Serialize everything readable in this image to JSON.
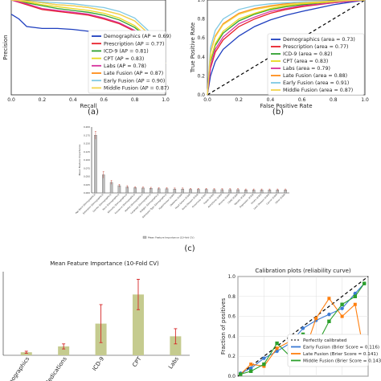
{
  "charts": [
    {
      "id": "a",
      "type": "line",
      "xlabel": "Recall",
      "ylabel": "Precision",
      "panel_label": "(a)",
      "xlim": [
        0,
        1
      ],
      "ylim": [
        0,
        1
      ],
      "x_ticks": [
        "0.0",
        "0.2",
        "0.4",
        "0.6",
        "0.8",
        "1.0"
      ],
      "legend_position": "lower-right",
      "series": [
        {
          "name": "Demographics (AP = 0.69)",
          "color": "#1f3fbf",
          "x": [
            0,
            0.05,
            0.1,
            0.2,
            0.3,
            0.4,
            0.5,
            0.6,
            0.7,
            0.8,
            0.9,
            1.0
          ],
          "y": [
            0.85,
            0.8,
            0.72,
            0.7,
            0.7,
            0.69,
            0.67,
            0.64,
            0.6,
            0.52,
            0.43,
            0.33
          ]
        },
        {
          "name": "Prescription (AP = 0.77)",
          "color": "#e8202a",
          "x": [
            0,
            0.1,
            0.2,
            0.3,
            0.4,
            0.5,
            0.6,
            0.7,
            0.8,
            0.9,
            1.0
          ],
          "y": [
            1.0,
            0.95,
            0.9,
            0.88,
            0.86,
            0.84,
            0.8,
            0.75,
            0.67,
            0.55,
            0.33
          ]
        },
        {
          "name": "ICD-9 (AP = 0.81)",
          "color": "#2fa02f",
          "x": [
            0,
            0.1,
            0.2,
            0.3,
            0.4,
            0.5,
            0.6,
            0.7,
            0.8,
            0.9,
            1.0
          ],
          "y": [
            1.0,
            0.97,
            0.94,
            0.91,
            0.89,
            0.87,
            0.84,
            0.79,
            0.71,
            0.58,
            0.33
          ]
        },
        {
          "name": "CPT (AP = 0.83)",
          "color": "#e7d81e",
          "x": [
            0,
            0.1,
            0.2,
            0.3,
            0.4,
            0.5,
            0.6,
            0.7,
            0.8,
            0.9,
            1.0
          ],
          "y": [
            1.0,
            0.98,
            0.95,
            0.93,
            0.91,
            0.89,
            0.86,
            0.81,
            0.73,
            0.59,
            0.33
          ]
        },
        {
          "name": "Labs (AP = 0.78)",
          "color": "#d6329c",
          "x": [
            0,
            0.1,
            0.2,
            0.3,
            0.4,
            0.5,
            0.6,
            0.7,
            0.8,
            0.9,
            1.0
          ],
          "y": [
            1.0,
            0.96,
            0.91,
            0.89,
            0.87,
            0.85,
            0.81,
            0.76,
            0.68,
            0.56,
            0.33
          ]
        },
        {
          "name": "Late Fusion (AP = 0.87)",
          "color": "#ff8c1a",
          "x": [
            0,
            0.1,
            0.2,
            0.3,
            0.4,
            0.5,
            0.6,
            0.7,
            0.8,
            0.9,
            1.0
          ],
          "y": [
            1.0,
            0.99,
            0.97,
            0.95,
            0.94,
            0.92,
            0.89,
            0.85,
            0.78,
            0.63,
            0.33
          ]
        },
        {
          "name": "Early Fusion (AP = 0.90)",
          "color": "#7ec8e3",
          "x": [
            0,
            0.1,
            0.2,
            0.3,
            0.4,
            0.5,
            0.6,
            0.7,
            0.8,
            0.9,
            1.0
          ],
          "y": [
            1.0,
            0.99,
            0.98,
            0.97,
            0.96,
            0.94,
            0.92,
            0.88,
            0.81,
            0.66,
            0.33
          ]
        },
        {
          "name": "Middle Fusion (AP = 0.87)",
          "color": "#f2d44c",
          "x": [
            0,
            0.1,
            0.2,
            0.3,
            0.4,
            0.5,
            0.6,
            0.7,
            0.8,
            0.9,
            1.0
          ],
          "y": [
            1.0,
            0.99,
            0.97,
            0.95,
            0.94,
            0.92,
            0.89,
            0.85,
            0.78,
            0.63,
            0.33
          ]
        }
      ]
    },
    {
      "id": "b",
      "type": "line",
      "xlabel": "False Positive Rate",
      "ylabel": "True Positive Rate",
      "panel_label": "(b)",
      "xlim": [
        0,
        1
      ],
      "ylim": [
        0,
        1
      ],
      "x_ticks": [
        "0.0",
        "0.2",
        "0.4",
        "0.6",
        "0.8",
        "1.0"
      ],
      "y_ticks": [
        "0.0",
        "0.2",
        "0.4",
        "0.6",
        "0.8",
        "1.0"
      ],
      "legend_position": "lower-right",
      "diagonal": true,
      "series": [
        {
          "name": "Demographics (area = 0.73)",
          "color": "#1f3fbf",
          "x": [
            0,
            0.02,
            0.05,
            0.1,
            0.2,
            0.3,
            0.4,
            0.5,
            0.6,
            0.8,
            1.0
          ],
          "y": [
            0,
            0.2,
            0.35,
            0.48,
            0.62,
            0.72,
            0.79,
            0.84,
            0.88,
            0.95,
            1.0
          ]
        },
        {
          "name": "Prescription (area = 0.77)",
          "color": "#e8202a",
          "x": [
            0,
            0.02,
            0.05,
            0.1,
            0.2,
            0.3,
            0.4,
            0.5,
            0.6,
            0.8,
            1.0
          ],
          "y": [
            0,
            0.28,
            0.45,
            0.58,
            0.72,
            0.8,
            0.86,
            0.9,
            0.93,
            0.97,
            1.0
          ]
        },
        {
          "name": "ICD-9 (area = 0.82)",
          "color": "#2fa02f",
          "x": [
            0,
            0.02,
            0.05,
            0.1,
            0.2,
            0.3,
            0.4,
            0.5,
            0.6,
            0.8,
            1.0
          ],
          "y": [
            0,
            0.35,
            0.52,
            0.65,
            0.78,
            0.85,
            0.9,
            0.93,
            0.95,
            0.98,
            1.0
          ]
        },
        {
          "name": "CPT (area = 0.83)",
          "color": "#e7d81e",
          "x": [
            0,
            0.02,
            0.05,
            0.1,
            0.2,
            0.3,
            0.4,
            0.5,
            0.6,
            0.8,
            1.0
          ],
          "y": [
            0,
            0.37,
            0.54,
            0.67,
            0.8,
            0.86,
            0.91,
            0.94,
            0.96,
            0.98,
            1.0
          ]
        },
        {
          "name": "Labs (area = 0.79)",
          "color": "#d6329c",
          "x": [
            0,
            0.02,
            0.05,
            0.1,
            0.2,
            0.3,
            0.4,
            0.5,
            0.6,
            0.8,
            1.0
          ],
          "y": [
            0,
            0.3,
            0.48,
            0.61,
            0.75,
            0.82,
            0.88,
            0.91,
            0.94,
            0.97,
            1.0
          ]
        },
        {
          "name": "Late Fusion (area = 0.88)",
          "color": "#ff8c1a",
          "x": [
            0,
            0.02,
            0.05,
            0.1,
            0.2,
            0.3,
            0.4,
            0.5,
            0.6,
            0.8,
            1.0
          ],
          "y": [
            0,
            0.45,
            0.62,
            0.75,
            0.86,
            0.91,
            0.94,
            0.96,
            0.97,
            0.99,
            1.0
          ]
        },
        {
          "name": "Early Fusion (area = 0.91)",
          "color": "#7ec8e3",
          "x": [
            0,
            0.02,
            0.05,
            0.1,
            0.2,
            0.3,
            0.4,
            0.5,
            0.6,
            0.8,
            1.0
          ],
          "y": [
            0,
            0.5,
            0.68,
            0.8,
            0.9,
            0.94,
            0.96,
            0.97,
            0.98,
            0.99,
            1.0
          ]
        },
        {
          "name": "Middle Fusion (area = 0.87)",
          "color": "#f2d44c",
          "x": [
            0,
            0.02,
            0.05,
            0.1,
            0.2,
            0.3,
            0.4,
            0.5,
            0.6,
            0.8,
            1.0
          ],
          "y": [
            0,
            0.44,
            0.61,
            0.74,
            0.85,
            0.9,
            0.93,
            0.95,
            0.97,
            0.99,
            1.0
          ]
        }
      ]
    },
    {
      "id": "c",
      "type": "bar",
      "ylabel": "Mean Feature Importance",
      "panel_label": "(c)",
      "legend": "Mean Feature Importance (10-fold CV)",
      "ylim": [
        0,
        0.2
      ],
      "y_ticks": [
        "0.000",
        "0.025",
        "0.050",
        "0.075",
        "0.100",
        "0.125",
        "0.150",
        "0.175",
        "0.200"
      ],
      "categories": [
        "Age Band (Demographics)",
        "Estimated (Demographics)",
        "Gender (Demographics)",
        "Race (Demographics)",
        "Ethnicity (Demographics)",
        "Insurance (Demographics)",
        "Marital (Demographics)",
        "Language (Demographics)",
        "Religion (Demographics)",
        "Admission Type (Demographics)",
        "Hypertension (ICD9)",
        "Diabetes (ICD9)",
        "Heart Failure (ICD9)",
        "Renal Disease (ICD9)",
        "Pneumonia (ICD9)",
        "Sepsis (ICD9)",
        "Arrhythmia (ICD9)",
        "Anemia (ICD9)",
        "COPD (ICD9)",
        "Obesity (ICD9)",
        "Depression (ICD9)",
        "Stroke (ICD9)",
        "Liver Disease (ICD9)",
        "Cancer (ICD9)",
        "Other (ICD9)"
      ],
      "values": [
        0.175,
        0.055,
        0.032,
        0.022,
        0.018,
        0.016,
        0.015,
        0.014,
        0.013,
        0.013,
        0.012,
        0.012,
        0.011,
        0.011,
        0.011,
        0.01,
        0.01,
        0.01,
        0.01,
        0.009,
        0.009,
        0.009,
        0.009,
        0.009,
        0.009
      ],
      "errors": [
        0.012,
        0.01,
        0.006,
        0.004,
        0.004,
        0.003,
        0.003,
        0.003,
        0.003,
        0.003,
        0.003,
        0.003,
        0.003,
        0.003,
        0.003,
        0.003,
        0.003,
        0.003,
        0.003,
        0.003,
        0.003,
        0.003,
        0.003,
        0.003,
        0.003
      ]
    },
    {
      "id": "d",
      "type": "bar",
      "title": "Mean Feature Importance (10-Fold CV)",
      "categories": [
        "Demographics",
        "Medications",
        "ICD-9",
        "CPT",
        "Labs"
      ],
      "values": [
        0.012,
        0.035,
        0.125,
        0.24,
        0.075
      ],
      "errors": [
        0.004,
        0.01,
        0.075,
        0.06,
        0.03
      ],
      "ylim": [
        0,
        0.33
      ]
    },
    {
      "id": "e",
      "type": "line",
      "title": "Calibration plots  (reliability curve)",
      "ylabel": "Fraction of positives",
      "xlim": [
        0,
        1
      ],
      "ylim": [
        0,
        1
      ],
      "y_ticks": [
        "0.0",
        "0.2",
        "0.4",
        "0.6",
        "0.8",
        "1.0"
      ],
      "legend_position": "lower-right",
      "diagonal_label": "Perfectly calibrated",
      "series": [
        {
          "name": "Early Fusion (Brier Score = 0.116)",
          "color": "#3b7bd4",
          "x": [
            0.02,
            0.1,
            0.2,
            0.3,
            0.4,
            0.5,
            0.6,
            0.7,
            0.8,
            0.9,
            0.97
          ],
          "y": [
            0.03,
            0.08,
            0.18,
            0.25,
            0.33,
            0.48,
            0.56,
            0.62,
            0.68,
            0.83,
            0.93
          ]
        },
        {
          "name": "Late Fusion (Brier Score = 0.141)",
          "color": "#ff7f0e",
          "x": [
            0.02,
            0.1,
            0.2,
            0.3,
            0.4,
            0.5,
            0.6,
            0.7,
            0.8,
            0.9,
            0.97
          ],
          "y": [
            0.02,
            0.12,
            0.1,
            0.28,
            0.35,
            0.2,
            0.58,
            0.78,
            0.6,
            0.72,
            0.22
          ]
        },
        {
          "name": "Middle Fusion (Brier Score = 0.143)",
          "color": "#2ca02c",
          "x": [
            0.02,
            0.1,
            0.2,
            0.3,
            0.4,
            0.5,
            0.6,
            0.7,
            0.8,
            0.9,
            0.97
          ],
          "y": [
            0.02,
            0.05,
            0.12,
            0.33,
            0.2,
            0.42,
            0.3,
            0.55,
            0.72,
            0.8,
            0.93
          ]
        }
      ]
    }
  ]
}
